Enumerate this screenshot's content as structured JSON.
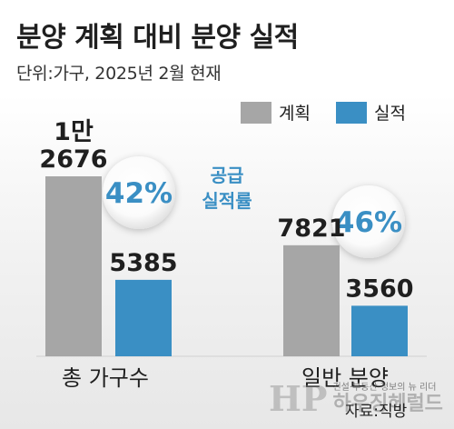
{
  "title": "분양 계획 대비 분양 실적",
  "subtitle": "단위:가구, 2025년 2월 현재",
  "legend": {
    "plan": "계획",
    "actual": "실적"
  },
  "colors": {
    "plan": "#a6a6a6",
    "actual": "#3a8fc4",
    "accent_text": "#3a8fc4"
  },
  "supply_rate_label": "공급\n실적률",
  "source": "자료:직방",
  "watermark": {
    "logo": "HP",
    "tagline": "건설·부동산 정보의 뉴 리더",
    "name": "하우징헤럴드"
  },
  "chart_data": {
    "type": "bar",
    "categories": [
      "총 가구수",
      "일반 분양"
    ],
    "series": [
      {
        "name": "계획",
        "values": [
          12676,
          7821
        ]
      },
      {
        "name": "실적",
        "values": [
          5385,
          3560
        ]
      }
    ],
    "value_labels": {
      "계획": [
        "1만\n2676",
        "7821"
      ],
      "실적": [
        "5385",
        "3560"
      ]
    },
    "rates": [
      "42%",
      "46%"
    ],
    "legend_position": "top-right",
    "grid": false
  }
}
